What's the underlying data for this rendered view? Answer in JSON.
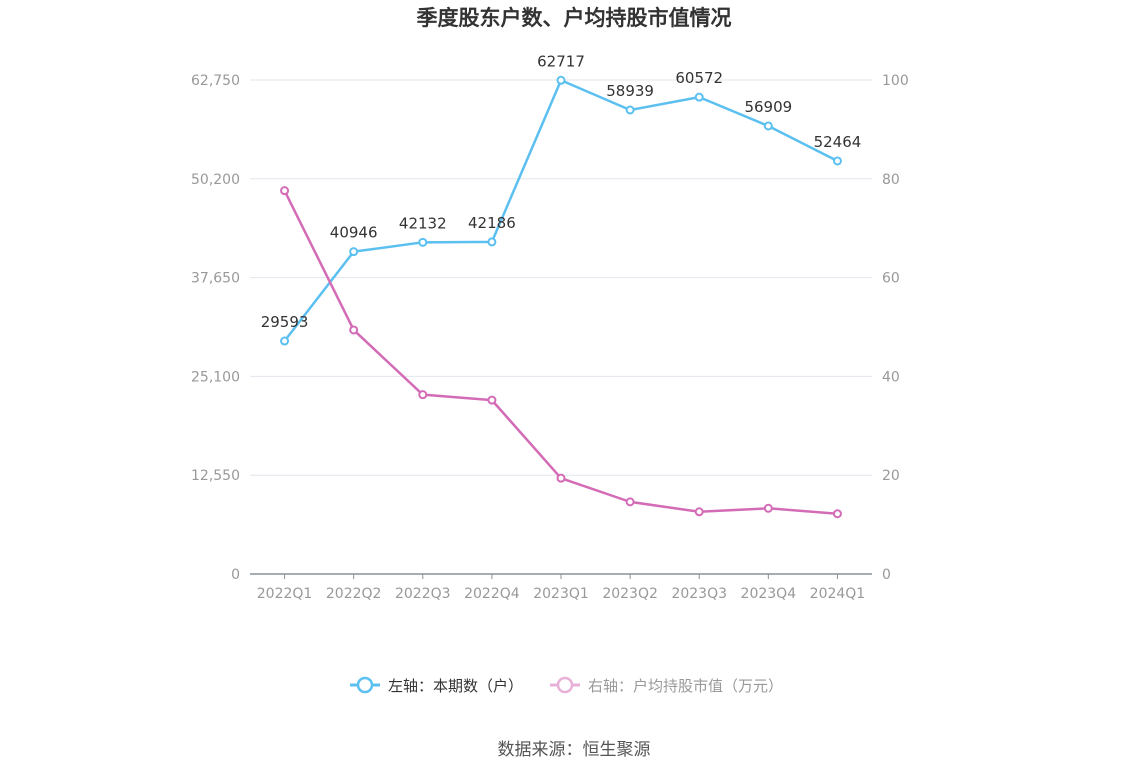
{
  "chart_data": {
    "type": "line",
    "title": "季度股东户数、户均持股市值情况",
    "categories": [
      "2022Q1",
      "2022Q2",
      "2022Q3",
      "2022Q4",
      "2023Q1",
      "2023Q2",
      "2023Q3",
      "2023Q4",
      "2024Q1"
    ],
    "series": [
      {
        "name": "左轴：本期数（户）",
        "axis": "left",
        "color": "#5bc0f0",
        "values": [
          29593,
          40946,
          42132,
          42186,
          62717,
          58939,
          60572,
          56909,
          52464
        ],
        "show_labels": true
      },
      {
        "name": "右轴：户均持股市值（万元）",
        "axis": "right",
        "color": "#d46bb6",
        "legend_color": "#e8b0d8",
        "values": [
          77.6,
          49.4,
          36.3,
          35.2,
          19.4,
          14.6,
          12.6,
          13.3,
          12.2
        ],
        "show_labels": false
      }
    ],
    "y_left": {
      "ticks": [
        "0",
        "12,550",
        "25,100",
        "37,650",
        "50,200",
        "62,750"
      ],
      "range": [
        0,
        62750
      ]
    },
    "y_right": {
      "ticks": [
        "0",
        "20",
        "40",
        "60",
        "80",
        "100"
      ],
      "range": [
        0,
        100
      ]
    },
    "grid": true,
    "legend_position": "bottom",
    "source": "数据来源：恒生聚源"
  }
}
